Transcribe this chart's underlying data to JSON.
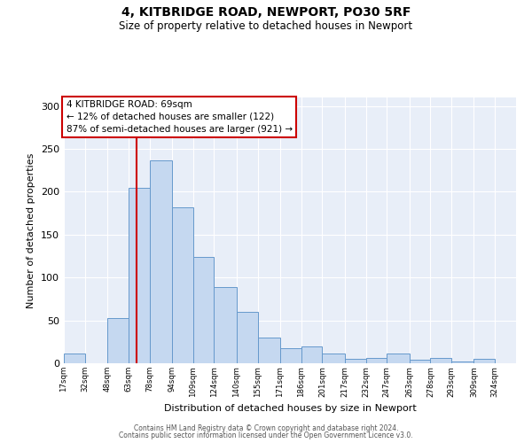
{
  "title1": "4, KITBRIDGE ROAD, NEWPORT, PO30 5RF",
  "title2": "Size of property relative to detached houses in Newport",
  "xlabel": "Distribution of detached houses by size in Newport",
  "ylabel": "Number of detached properties",
  "bar_color": "#c5d8f0",
  "bar_edge_color": "#6699cc",
  "background_color": "#e8eef8",
  "bins": [
    17,
    32,
    48,
    63,
    78,
    94,
    109,
    124,
    140,
    155,
    171,
    186,
    201,
    217,
    232,
    247,
    263,
    278,
    293,
    309,
    324
  ],
  "bin_labels": [
    "17sqm",
    "32sqm",
    "48sqm",
    "63sqm",
    "78sqm",
    "94sqm",
    "109sqm",
    "124sqm",
    "140sqm",
    "155sqm",
    "171sqm",
    "186sqm",
    "201sqm",
    "217sqm",
    "232sqm",
    "247sqm",
    "263sqm",
    "278sqm",
    "293sqm",
    "309sqm",
    "324sqm"
  ],
  "bar_heights": [
    11,
    0,
    53,
    205,
    237,
    182,
    124,
    89,
    60,
    30,
    18,
    20,
    11,
    5,
    6,
    11,
    4,
    6,
    2,
    5,
    0
  ],
  "vline_x": 69,
  "vline_color": "#cc0000",
  "annotation_line1": "4 KITBRIDGE ROAD: 69sqm",
  "annotation_line2": "← 12% of detached houses are smaller (122)",
  "annotation_line3": "87% of semi-detached houses are larger (921) →",
  "annotation_box_color": "#ffffff",
  "annotation_box_edge_color": "#cc0000",
  "ylim": [
    0,
    310
  ],
  "yticks": [
    0,
    50,
    100,
    150,
    200,
    250,
    300
  ],
  "footer1": "Contains HM Land Registry data © Crown copyright and database right 2024.",
  "footer2": "Contains public sector information licensed under the Open Government Licence v3.0."
}
